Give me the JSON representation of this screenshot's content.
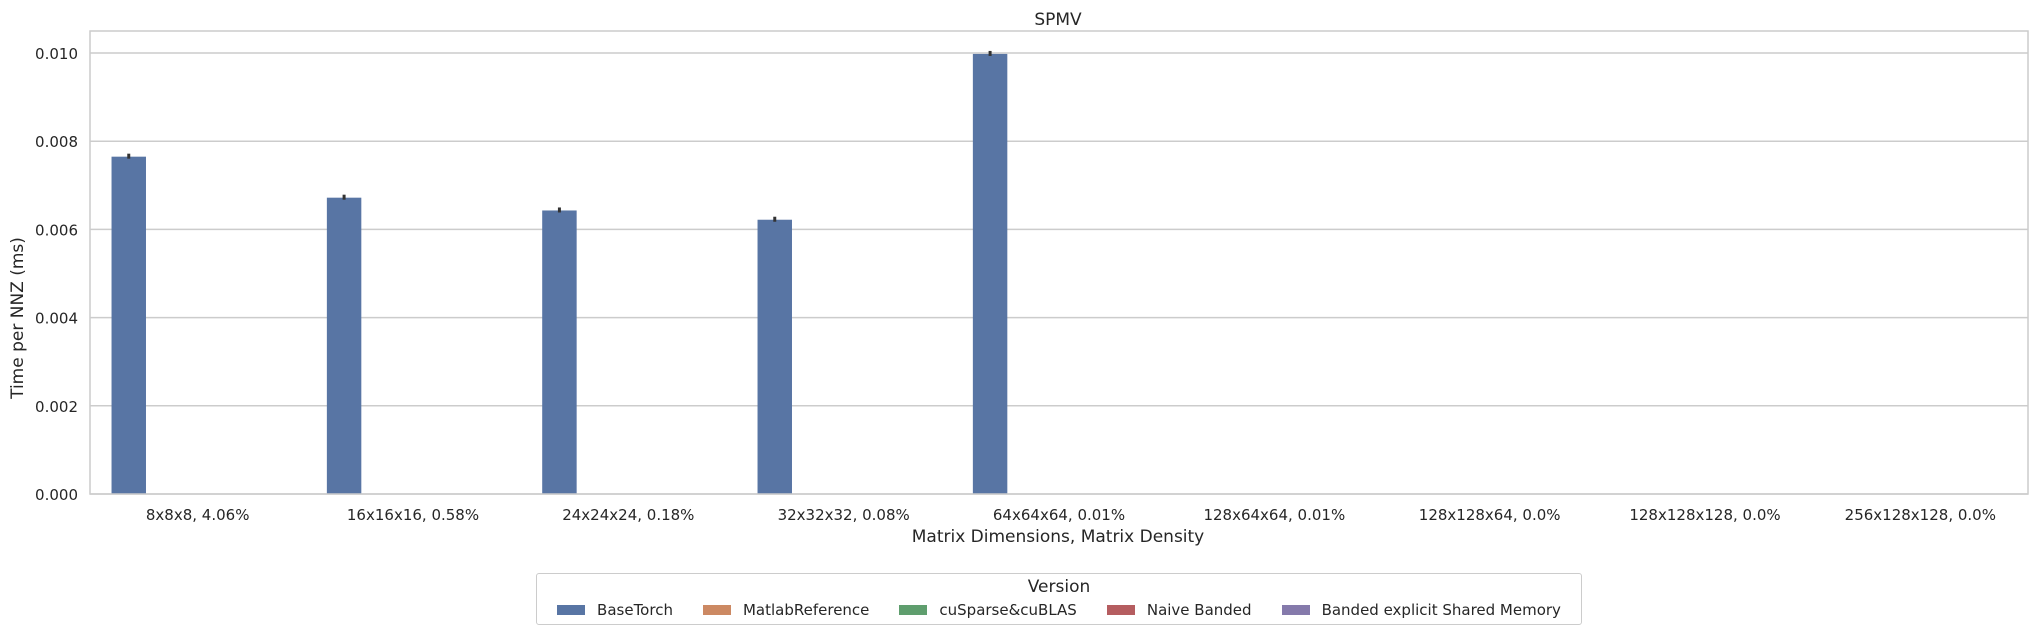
{
  "chart_data": {
    "type": "bar",
    "title": "SPMV",
    "xlabel": "Matrix Dimensions, Matrix Density",
    "ylabel": "Time per NNZ (ms)",
    "ylim": [
      0,
      0.0105
    ],
    "yticks": [
      "0.000",
      "0.002",
      "0.004",
      "0.006",
      "0.008",
      "0.010"
    ],
    "ytick_values": [
      0,
      0.002,
      0.004,
      0.006,
      0.008,
      0.01
    ],
    "grid": true,
    "categories": [
      "8x8x8, 4.06%",
      "16x16x16, 0.58%",
      "24x24x24, 0.18%",
      "32x32x32, 0.08%",
      "64x64x64, 0.01%",
      "128x64x64, 0.01%",
      "128x128x64, 0.0%",
      "128x128x128, 0.0%",
      "256x128x128, 0.0%"
    ],
    "series": [
      {
        "name": "BaseTorch",
        "color": "#5875a4",
        "values": [
          0.00765,
          0.00672,
          0.00643,
          0.00622,
          0.00998,
          null,
          null,
          null,
          null
        ]
      },
      {
        "name": "MatlabReference",
        "color": "#cc8963",
        "values": [
          null,
          null,
          null,
          null,
          null,
          null,
          null,
          null,
          null
        ]
      },
      {
        "name": "cuSparse&cuBLAS",
        "color": "#5f9e6e",
        "values": [
          null,
          null,
          null,
          null,
          null,
          null,
          null,
          null,
          null
        ]
      },
      {
        "name": "Naive Banded",
        "color": "#b55d60",
        "values": [
          null,
          null,
          null,
          null,
          null,
          null,
          null,
          null,
          null
        ]
      },
      {
        "name": "Banded explicit Shared Memory",
        "color": "#857aab",
        "values": [
          null,
          null,
          null,
          null,
          null,
          null,
          null,
          null,
          null
        ]
      }
    ],
    "legend": {
      "title": "Version",
      "placement": "bottom-center"
    }
  }
}
